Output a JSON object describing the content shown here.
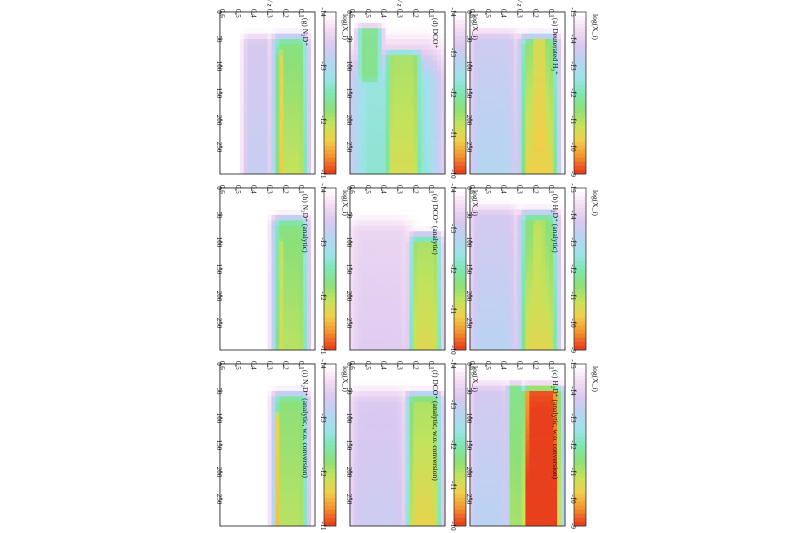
{
  "figure": {
    "colormap": [
      "#ffffff",
      "#f3dcf3",
      "#d9c8f0",
      "#b9d3f2",
      "#9fe3e9",
      "#7fe6b7",
      "#8be07a",
      "#c4e35c",
      "#f0d04a",
      "#f4932f",
      "#e8401c"
    ],
    "y_axis_label": "r / z",
    "colorbar_label": "log(X_i)"
  },
  "chart_data": [
    {
      "id": "a",
      "type": "heatmap",
      "title": "(a) Deuterated H₃⁺",
      "column": 0,
      "row": 0,
      "x_ticks": [
        "0",
        "50",
        "100",
        "150",
        "200",
        "250"
      ],
      "y_ticks": [
        "0.1",
        "0.2",
        "0.3",
        "0.4",
        "0.5",
        "0.6"
      ],
      "colorbar_ticks": [
        "-15",
        "-14",
        "-13",
        "-12",
        "-11",
        "-10",
        "-9"
      ],
      "features": [
        {
          "r": [
            30,
            300
          ],
          "z": [
            0.05,
            0.28
          ],
          "level": 0.58,
          "rise": 0.22,
          "front": 0.1
        },
        {
          "r": [
            40,
            260
          ],
          "z": [
            0.1,
            0.22
          ],
          "level": 0.72,
          "rise": 0.1,
          "front": 0.05
        },
        {
          "r": [
            20,
            300
          ],
          "z": [
            0.3,
            0.6
          ],
          "level": 0.22,
          "rise": 0.1,
          "front": 0.12
        }
      ]
    },
    {
      "id": "b",
      "type": "heatmap",
      "title": "(b) H₂D⁺ (analytic)",
      "column": 0,
      "row": 1,
      "x_ticks": [
        "0",
        "50",
        "100",
        "150",
        "200",
        "250"
      ],
      "y_ticks": [
        "0.1",
        "0.2",
        "0.3",
        "0.4",
        "0.5",
        "0.6"
      ],
      "colorbar_ticks": [
        "-15",
        "-14",
        "-13",
        "-12",
        "-11",
        "-10",
        "-9"
      ],
      "features": [
        {
          "r": [
            30,
            300
          ],
          "z": [
            0.05,
            0.28
          ],
          "level": 0.55,
          "rise": 0.22,
          "front": 0.1
        },
        {
          "r": [
            50,
            260
          ],
          "z": [
            0.12,
            0.22
          ],
          "level": 0.66,
          "rise": 0.1,
          "front": 0.05
        },
        {
          "r": [
            20,
            300
          ],
          "z": [
            0.3,
            0.6
          ],
          "level": 0.2,
          "rise": 0.1,
          "front": 0.12
        }
      ]
    },
    {
      "id": "c",
      "type": "heatmap",
      "title": "(c) H₂D⁺ (analytic, w.o. conversion)",
      "column": 0,
      "row": 2,
      "x_ticks": [
        "0",
        "50",
        "100",
        "150",
        "200",
        "250"
      ],
      "y_ticks": [
        "0.1",
        "0.2",
        "0.3",
        "0.4",
        "0.5",
        "0.6"
      ],
      "colorbar_ticks": [
        "-15",
        "-14",
        "-13",
        "-12",
        "-11",
        "-10",
        "-9"
      ],
      "features": [
        {
          "r": [
            30,
            300
          ],
          "z": [
            0.03,
            0.27
          ],
          "level": 0.93,
          "rise": 0.26,
          "front": 0.08
        },
        {
          "r": [
            30,
            300
          ],
          "z": [
            0.27,
            0.36
          ],
          "level": 0.55,
          "rise": 0.1,
          "front": 0.05
        },
        {
          "r": [
            20,
            300
          ],
          "z": [
            0.36,
            0.6
          ],
          "level": 0.2,
          "rise": 0.1,
          "front": 0.12
        }
      ]
    },
    {
      "id": "d",
      "type": "heatmap",
      "title": "(d) DCO⁺",
      "column": 1,
      "row": 0,
      "x_ticks": [
        "0",
        "50",
        "100",
        "150",
        "200",
        "250"
      ],
      "y_ticks": [
        "0.1",
        "0.2",
        "0.3",
        "0.4",
        "0.5",
        "0.6"
      ],
      "colorbar_ticks": [
        "-14",
        "-13",
        "-12",
        "-11",
        "-10"
      ],
      "features": [
        {
          "r": [
            20,
            300
          ],
          "z": [
            0.03,
            0.6
          ],
          "level": 0.4,
          "rise": 0.05,
          "front": 0.4
        },
        {
          "r": [
            60,
            300
          ],
          "z": [
            0.15,
            0.38
          ],
          "level": 0.62,
          "rise": 0.12,
          "front": 0.08
        },
        {
          "r": [
            20,
            120
          ],
          "z": [
            0.4,
            0.55
          ],
          "level": 0.55,
          "rise": 0.05,
          "front": 0.05
        }
      ]
    },
    {
      "id": "e",
      "type": "heatmap",
      "title": "(e) DCO⁺ (analytic)",
      "column": 1,
      "row": 1,
      "x_ticks": [
        "0",
        "50",
        "100",
        "150",
        "200",
        "250"
      ],
      "y_ticks": [
        "0.1",
        "0.2",
        "0.3",
        "0.4",
        "0.5",
        "0.6"
      ],
      "colorbar_ticks": [
        "-14",
        "-13",
        "-12",
        "-11",
        "-10"
      ],
      "features": [
        {
          "r": [
            70,
            300
          ],
          "z": [
            0.03,
            0.22
          ],
          "level": 0.6,
          "rise": 0.16,
          "front": 0.12
        },
        {
          "r": [
            40,
            300
          ],
          "z": [
            0.22,
            0.6
          ],
          "level": 0.12,
          "rise": 0.06,
          "front": 0.15
        }
      ]
    },
    {
      "id": "f",
      "type": "heatmap",
      "title": "(f) DCO⁺ (analytic, w.o. conversion)",
      "column": 1,
      "row": 2,
      "x_ticks": [
        "0",
        "50",
        "100",
        "150",
        "200",
        "250"
      ],
      "y_ticks": [
        "0.1",
        "0.2",
        "0.3",
        "0.4",
        "0.5",
        "0.6"
      ],
      "colorbar_ticks": [
        "-14",
        "-13",
        "-12",
        "-11",
        "-10"
      ],
      "features": [
        {
          "r": [
            40,
            300
          ],
          "z": [
            0.03,
            0.24
          ],
          "level": 0.62,
          "rise": 0.16,
          "front": 0.1
        },
        {
          "r": [
            30,
            300
          ],
          "z": [
            0.24,
            0.6
          ],
          "level": 0.18,
          "rise": 0.06,
          "front": 0.15
        }
      ]
    },
    {
      "id": "g",
      "type": "heatmap",
      "title": "(g) N₂D⁺",
      "column": 2,
      "row": 0,
      "x_ticks": [
        "0",
        "50",
        "100",
        "150",
        "200",
        "250"
      ],
      "y_ticks": [
        "0.1",
        "0.2",
        "0.3",
        "0.4",
        "0.5",
        "0.6"
      ],
      "colorbar_ticks": [
        "-14",
        "-13",
        "-12",
        "-11"
      ],
      "features": [
        {
          "r": [
            30,
            300
          ],
          "z": [
            0.05,
            0.26
          ],
          "level": 0.56,
          "rise": 0.14,
          "front": 0.1
        },
        {
          "r": [
            60,
            300
          ],
          "z": [
            0.2,
            0.24
          ],
          "level": 0.75,
          "rise": 0.06,
          "front": 0.06
        },
        {
          "r": [
            30,
            300
          ],
          "z": [
            0.28,
            0.45
          ],
          "level": 0.2,
          "rise": 0.06,
          "front": 0.1
        }
      ]
    },
    {
      "id": "h",
      "type": "heatmap",
      "title": "(h) N₂D⁺ (analytic)",
      "column": 2,
      "row": 1,
      "x_ticks": [
        "0",
        "50",
        "100",
        "150",
        "200",
        "250"
      ],
      "y_ticks": [
        "0.1",
        "0.2",
        "0.3",
        "0.4",
        "0.5",
        "0.6"
      ],
      "colorbar_ticks": [
        "-14",
        "-13",
        "-12",
        "-11"
      ],
      "features": [
        {
          "r": [
            40,
            300
          ],
          "z": [
            0.05,
            0.26
          ],
          "level": 0.56,
          "rise": 0.12,
          "front": 0.1
        },
        {
          "r": [
            80,
            300
          ],
          "z": [
            0.2,
            0.24
          ],
          "level": 0.68,
          "rise": 0.06,
          "front": 0.06
        }
      ]
    },
    {
      "id": "i",
      "type": "heatmap",
      "title": "(i) N₂D⁺ (analytic, w.o. conversion)",
      "column": 2,
      "row": 2,
      "x_ticks": [
        "0",
        "50",
        "100",
        "150",
        "200",
        "250"
      ],
      "y_ticks": [
        "0.1",
        "0.2",
        "0.3",
        "0.4",
        "0.5",
        "0.6"
      ],
      "colorbar_ticks": [
        "-14",
        "-13",
        "-12",
        "-11"
      ],
      "features": [
        {
          "r": [
            40,
            300
          ],
          "z": [
            0.05,
            0.26
          ],
          "level": 0.58,
          "rise": 0.1,
          "front": 0.1
        },
        {
          "r": [
            80,
            300
          ],
          "z": [
            0.21,
            0.25
          ],
          "level": 0.78,
          "rise": 0.04,
          "front": 0.06
        }
      ]
    }
  ]
}
